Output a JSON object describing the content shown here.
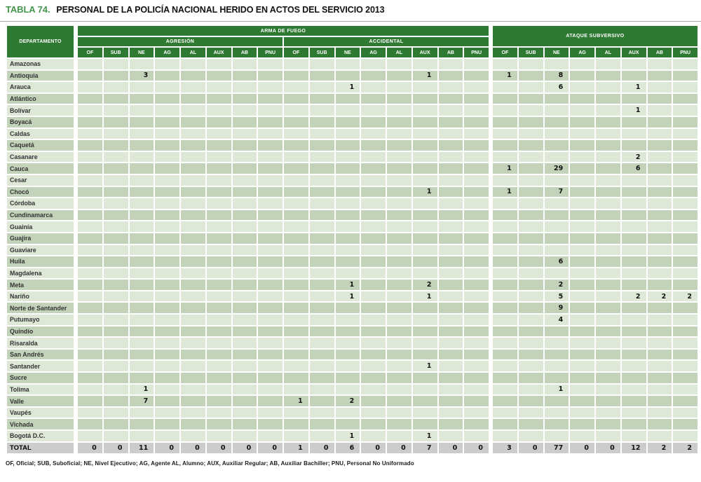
{
  "title": {
    "tag": "TABLA 74.",
    "text": "PERSONAL DE LA POLICÍA NACIONAL HERIDO EN ACTOS DEL SERVICIO 2013"
  },
  "colors": {
    "header_green": "#2e7a33",
    "title_green": "#42974a",
    "row_light": "#dee8d7",
    "row_dark": "#c3d3b9",
    "total_bg": "#cccccc"
  },
  "table": {
    "corner_header": "DEPARTAMENTO",
    "groups": [
      {
        "label": "ARMA DE FUEGO",
        "subgroups": [
          {
            "label": "AGRESIÓN"
          },
          {
            "label": "ACCIDENTAL"
          }
        ]
      },
      {
        "label": "ATAQUE SUBVERSIVO"
      }
    ],
    "rank_headers": [
      "OF",
      "SUB",
      "NE",
      "AG",
      "AL",
      "AUX",
      "AB",
      "PNU"
    ],
    "rows": [
      {
        "name": "Amazonas",
        "values": [
          "",
          "",
          "",
          "",
          "",
          "",
          "",
          "",
          "",
          "",
          "",
          "",
          "",
          "",
          "",
          "",
          "",
          "",
          "",
          "",
          "",
          "",
          "",
          ""
        ]
      },
      {
        "name": "Antioquia",
        "values": [
          "",
          "",
          3,
          "",
          "",
          "",
          "",
          "",
          "",
          "",
          "",
          "",
          "",
          1,
          "",
          "",
          1,
          "",
          8,
          "",
          "",
          "",
          "",
          ""
        ]
      },
      {
        "name": "Arauca",
        "values": [
          "",
          "",
          "",
          "",
          "",
          "",
          "",
          "",
          "",
          "",
          1,
          "",
          "",
          "",
          "",
          "",
          "",
          "",
          6,
          "",
          "",
          1,
          "",
          ""
        ]
      },
      {
        "name": "Atlántico",
        "values": [
          "",
          "",
          "",
          "",
          "",
          "",
          "",
          "",
          "",
          "",
          "",
          "",
          "",
          "",
          "",
          "",
          "",
          "",
          "",
          "",
          "",
          "",
          "",
          ""
        ]
      },
      {
        "name": "Bolívar",
        "values": [
          "",
          "",
          "",
          "",
          "",
          "",
          "",
          "",
          "",
          "",
          "",
          "",
          "",
          "",
          "",
          "",
          "",
          "",
          "",
          "",
          "",
          1,
          "",
          ""
        ]
      },
      {
        "name": "Boyacá",
        "values": [
          "",
          "",
          "",
          "",
          "",
          "",
          "",
          "",
          "",
          "",
          "",
          "",
          "",
          "",
          "",
          "",
          "",
          "",
          "",
          "",
          "",
          "",
          "",
          ""
        ]
      },
      {
        "name": "Caldas",
        "values": [
          "",
          "",
          "",
          "",
          "",
          "",
          "",
          "",
          "",
          "",
          "",
          "",
          "",
          "",
          "",
          "",
          "",
          "",
          "",
          "",
          "",
          "",
          "",
          ""
        ]
      },
      {
        "name": "Caquetá",
        "values": [
          "",
          "",
          "",
          "",
          "",
          "",
          "",
          "",
          "",
          "",
          "",
          "",
          "",
          "",
          "",
          "",
          "",
          "",
          "",
          "",
          "",
          "",
          "",
          ""
        ]
      },
      {
        "name": "Casanare",
        "values": [
          "",
          "",
          "",
          "",
          "",
          "",
          "",
          "",
          "",
          "",
          "",
          "",
          "",
          "",
          "",
          "",
          "",
          "",
          "",
          "",
          "",
          2,
          "",
          ""
        ]
      },
      {
        "name": "Cauca",
        "values": [
          "",
          "",
          "",
          "",
          "",
          "",
          "",
          "",
          "",
          "",
          "",
          "",
          "",
          "",
          "",
          "",
          1,
          "",
          29,
          "",
          "",
          6,
          "",
          ""
        ]
      },
      {
        "name": "Cesar",
        "values": [
          "",
          "",
          "",
          "",
          "",
          "",
          "",
          "",
          "",
          "",
          "",
          "",
          "",
          "",
          "",
          "",
          "",
          "",
          "",
          "",
          "",
          "",
          "",
          ""
        ]
      },
      {
        "name": "Chocó",
        "values": [
          "",
          "",
          "",
          "",
          "",
          "",
          "",
          "",
          "",
          "",
          "",
          "",
          "",
          1,
          "",
          "",
          1,
          "",
          7,
          "",
          "",
          "",
          "",
          ""
        ]
      },
      {
        "name": "Córdoba",
        "values": [
          "",
          "",
          "",
          "",
          "",
          "",
          "",
          "",
          "",
          "",
          "",
          "",
          "",
          "",
          "",
          "",
          "",
          "",
          "",
          "",
          "",
          "",
          "",
          ""
        ]
      },
      {
        "name": "Cundinamarca",
        "values": [
          "",
          "",
          "",
          "",
          "",
          "",
          "",
          "",
          "",
          "",
          "",
          "",
          "",
          "",
          "",
          "",
          "",
          "",
          "",
          "",
          "",
          "",
          "",
          ""
        ]
      },
      {
        "name": "Guainía",
        "values": [
          "",
          "",
          "",
          "",
          "",
          "",
          "",
          "",
          "",
          "",
          "",
          "",
          "",
          "",
          "",
          "",
          "",
          "",
          "",
          "",
          "",
          "",
          "",
          ""
        ]
      },
      {
        "name": "Guajira",
        "values": [
          "",
          "",
          "",
          "",
          "",
          "",
          "",
          "",
          "",
          "",
          "",
          "",
          "",
          "",
          "",
          "",
          "",
          "",
          "",
          "",
          "",
          "",
          "",
          ""
        ]
      },
      {
        "name": "Guaviare",
        "values": [
          "",
          "",
          "",
          "",
          "",
          "",
          "",
          "",
          "",
          "",
          "",
          "",
          "",
          "",
          "",
          "",
          "",
          "",
          "",
          "",
          "",
          "",
          "",
          ""
        ]
      },
      {
        "name": "Huila",
        "values": [
          "",
          "",
          "",
          "",
          "",
          "",
          "",
          "",
          "",
          "",
          "",
          "",
          "",
          "",
          "",
          "",
          "",
          "",
          6,
          "",
          "",
          "",
          "",
          ""
        ]
      },
      {
        "name": "Magdalena",
        "values": [
          "",
          "",
          "",
          "",
          "",
          "",
          "",
          "",
          "",
          "",
          "",
          "",
          "",
          "",
          "",
          "",
          "",
          "",
          "",
          "",
          "",
          "",
          "",
          ""
        ]
      },
      {
        "name": "Meta",
        "values": [
          "",
          "",
          "",
          "",
          "",
          "",
          "",
          "",
          "",
          "",
          1,
          "",
          "",
          2,
          "",
          "",
          "",
          "",
          2,
          "",
          "",
          "",
          "",
          ""
        ]
      },
      {
        "name": "Nariño",
        "values": [
          "",
          "",
          "",
          "",
          "",
          "",
          "",
          "",
          "",
          "",
          1,
          "",
          "",
          1,
          "",
          "",
          "",
          "",
          5,
          "",
          "",
          2,
          2,
          2
        ]
      },
      {
        "name": "Norte de Santander",
        "values": [
          "",
          "",
          "",
          "",
          "",
          "",
          "",
          "",
          "",
          "",
          "",
          "",
          "",
          "",
          "",
          "",
          "",
          "",
          9,
          "",
          "",
          "",
          "",
          ""
        ]
      },
      {
        "name": "Putumayo",
        "values": [
          "",
          "",
          "",
          "",
          "",
          "",
          "",
          "",
          "",
          "",
          "",
          "",
          "",
          "",
          "",
          "",
          "",
          "",
          4,
          "",
          "",
          "",
          "",
          ""
        ]
      },
      {
        "name": "Quindío",
        "values": [
          "",
          "",
          "",
          "",
          "",
          "",
          "",
          "",
          "",
          "",
          "",
          "",
          "",
          "",
          "",
          "",
          "",
          "",
          "",
          "",
          "",
          "",
          "",
          ""
        ]
      },
      {
        "name": "Risaralda",
        "values": [
          "",
          "",
          "",
          "",
          "",
          "",
          "",
          "",
          "",
          "",
          "",
          "",
          "",
          "",
          "",
          "",
          "",
          "",
          "",
          "",
          "",
          "",
          "",
          ""
        ]
      },
      {
        "name": "San Andrés",
        "values": [
          "",
          "",
          "",
          "",
          "",
          "",
          "",
          "",
          "",
          "",
          "",
          "",
          "",
          "",
          "",
          "",
          "",
          "",
          "",
          "",
          "",
          "",
          "",
          ""
        ]
      },
      {
        "name": "Santander",
        "values": [
          "",
          "",
          "",
          "",
          "",
          "",
          "",
          "",
          "",
          "",
          "",
          "",
          "",
          1,
          "",
          "",
          "",
          "",
          "",
          "",
          "",
          "",
          "",
          ""
        ]
      },
      {
        "name": "Sucre",
        "values": [
          "",
          "",
          "",
          "",
          "",
          "",
          "",
          "",
          "",
          "",
          "",
          "",
          "",
          "",
          "",
          "",
          "",
          "",
          "",
          "",
          "",
          "",
          "",
          ""
        ]
      },
      {
        "name": "Tolima",
        "values": [
          "",
          "",
          1,
          "",
          "",
          "",
          "",
          "",
          "",
          "",
          "",
          "",
          "",
          "",
          "",
          "",
          "",
          "",
          1,
          "",
          "",
          "",
          "",
          ""
        ]
      },
      {
        "name": "Valle",
        "values": [
          "",
          "",
          7,
          "",
          "",
          "",
          "",
          "",
          1,
          "",
          2,
          "",
          "",
          "",
          "",
          "",
          "",
          "",
          "",
          "",
          "",
          "",
          "",
          ""
        ]
      },
      {
        "name": "Vaupés",
        "values": [
          "",
          "",
          "",
          "",
          "",
          "",
          "",
          "",
          "",
          "",
          "",
          "",
          "",
          "",
          "",
          "",
          "",
          "",
          "",
          "",
          "",
          "",
          "",
          ""
        ]
      },
      {
        "name": "Vichada",
        "values": [
          "",
          "",
          "",
          "",
          "",
          "",
          "",
          "",
          "",
          "",
          "",
          "",
          "",
          "",
          "",
          "",
          "",
          "",
          "",
          "",
          "",
          "",
          "",
          ""
        ]
      },
      {
        "name": "Bogotá D.C.",
        "values": [
          "",
          "",
          "",
          "",
          "",
          "",
          "",
          "",
          "",
          "",
          1,
          "",
          "",
          1,
          "",
          "",
          "",
          "",
          "",
          "",
          "",
          "",
          "",
          ""
        ]
      }
    ],
    "total": {
      "name": "TOTAL",
      "values": [
        0,
        0,
        11,
        0,
        0,
        0,
        0,
        0,
        1,
        0,
        6,
        0,
        0,
        7,
        0,
        0,
        3,
        0,
        77,
        0,
        0,
        12,
        2,
        2
      ]
    }
  },
  "footnote": "OF, Oficial; SUB, Suboficial; NE, Nivel Ejecutivo; AG, Agente AL, Alumno; AUX, Auxiliar Regular; AB, Auxiliar Bachiller; PNU, Personal No Uniformado"
}
